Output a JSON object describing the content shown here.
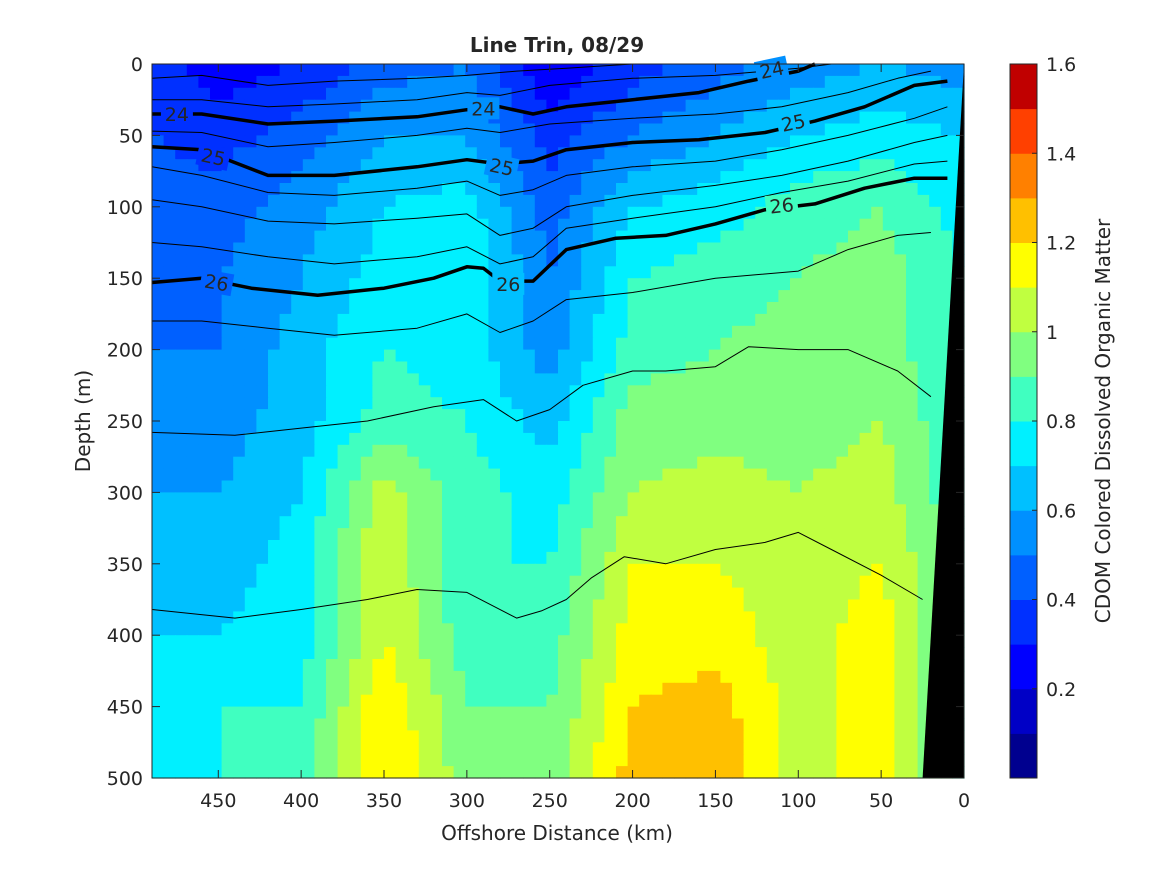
{
  "chart_data": {
    "type": "heatmap",
    "title": "Line Trin, 08/29",
    "xlabel": "Offshore Distance (km)",
    "ylabel": "Depth (m)",
    "colorbar_label": "CDOM Colored Dissolved Organic Matter",
    "xlim": [
      490,
      0
    ],
    "ylim": [
      0,
      500
    ],
    "x_reversed": true,
    "y_reversed": true,
    "x_ticks": [
      450,
      400,
      350,
      300,
      250,
      200,
      150,
      100,
      50,
      0
    ],
    "y_ticks": [
      0,
      50,
      100,
      150,
      200,
      250,
      300,
      350,
      400,
      450,
      500
    ],
    "colorbar_range": [
      0,
      1.6
    ],
    "colorbar_ticks": [
      0.2,
      0.4,
      0.6,
      0.8,
      1,
      1.2,
      1.4,
      1.6
    ],
    "colorbar_levels": 16,
    "colorbar_colors": [
      "#00008F",
      "#0000C6",
      "#0000FF",
      "#0030FF",
      "#0060FF",
      "#0090FF",
      "#00C0FF",
      "#00F0FF",
      "#40FFC0",
      "#80FF80",
      "#C0FF40",
      "#FFFF00",
      "#FFC000",
      "#FF8000",
      "#FF4000",
      "#C00000"
    ],
    "heatmap": {
      "x": [
        490,
        450,
        400,
        350,
        300,
        250,
        200,
        150,
        100,
        50,
        0
      ],
      "y": [
        0,
        50,
        100,
        150,
        200,
        250,
        300,
        350,
        400,
        450,
        500
      ],
      "z": [
        [
          0.35,
          0.25,
          0.3,
          0.45,
          0.5,
          0.2,
          0.35,
          0.45,
          0.55,
          0.6,
          0.55
        ],
        [
          0.4,
          0.35,
          0.45,
          0.6,
          0.6,
          0.35,
          0.5,
          0.6,
          0.7,
          0.75,
          0.7
        ],
        [
          0.45,
          0.45,
          0.55,
          0.7,
          0.75,
          0.45,
          0.7,
          0.75,
          0.85,
          0.9,
          0.75
        ],
        [
          0.45,
          0.5,
          0.6,
          0.75,
          0.8,
          0.5,
          0.8,
          0.85,
          0.9,
          0.95,
          0.8
        ],
        [
          0.5,
          0.5,
          0.65,
          0.8,
          0.75,
          0.55,
          0.85,
          0.9,
          0.95,
          0.95,
          0.8
        ],
        [
          0.55,
          0.55,
          0.65,
          0.85,
          0.8,
          0.65,
          0.95,
          0.95,
          0.95,
          1.0,
          0.8
        ],
        [
          0.6,
          0.6,
          0.7,
          1.05,
          0.85,
          0.75,
          1.0,
          1.05,
          1.0,
          1.05,
          0.8
        ],
        [
          0.6,
          0.65,
          0.75,
          1.1,
          0.8,
          0.8,
          1.1,
          1.1,
          1.05,
          1.1,
          0.85
        ],
        [
          0.7,
          0.7,
          0.75,
          1.1,
          0.85,
          0.85,
          1.15,
          1.15,
          1.05,
          1.15,
          0.85
        ],
        [
          0.75,
          0.8,
          0.8,
          1.2,
          0.9,
          0.9,
          1.2,
          1.25,
          1.05,
          1.15,
          0.85
        ],
        [
          0.8,
          0.8,
          0.85,
          1.2,
          0.95,
          0.95,
          1.25,
          1.3,
          1.05,
          1.15,
          0.85
        ]
      ]
    },
    "contours": [
      {
        "level": "24",
        "bold": true,
        "points": [
          [
            490,
            35
          ],
          [
            460,
            35
          ],
          [
            420,
            42
          ],
          [
            380,
            40
          ],
          [
            330,
            37
          ],
          [
            300,
            32
          ],
          [
            280,
            30
          ],
          [
            260,
            35
          ],
          [
            240,
            30
          ],
          [
            200,
            25
          ],
          [
            160,
            20
          ],
          [
            130,
            12
          ],
          [
            100,
            5
          ],
          [
            90,
            0
          ]
        ]
      },
      {
        "level": "25",
        "bold": true,
        "points": [
          [
            490,
            58
          ],
          [
            460,
            60
          ],
          [
            420,
            78
          ],
          [
            380,
            78
          ],
          [
            330,
            72
          ],
          [
            300,
            67
          ],
          [
            280,
            70
          ],
          [
            260,
            68
          ],
          [
            240,
            60
          ],
          [
            200,
            55
          ],
          [
            160,
            53
          ],
          [
            120,
            48
          ],
          [
            90,
            40
          ],
          [
            60,
            30
          ],
          [
            30,
            15
          ],
          [
            10,
            12
          ]
        ]
      },
      {
        "level": "26",
        "bold": true,
        "points": [
          [
            490,
            153
          ],
          [
            460,
            150
          ],
          [
            430,
            157
          ],
          [
            390,
            162
          ],
          [
            350,
            157
          ],
          [
            320,
            150
          ],
          [
            300,
            142
          ],
          [
            290,
            143
          ],
          [
            280,
            152
          ],
          [
            260,
            152
          ],
          [
            240,
            130
          ],
          [
            210,
            122
          ],
          [
            180,
            120
          ],
          [
            150,
            112
          ],
          [
            120,
            102
          ],
          [
            90,
            98
          ],
          [
            60,
            87
          ],
          [
            30,
            80
          ],
          [
            10,
            80
          ]
        ]
      },
      {
        "level": "",
        "bold": false,
        "points": [
          [
            490,
            10
          ],
          [
            460,
            8
          ],
          [
            420,
            15
          ],
          [
            380,
            12
          ],
          [
            330,
            10
          ],
          [
            300,
            8
          ],
          [
            270,
            5
          ],
          [
            240,
            3
          ],
          [
            200,
            0
          ]
        ]
      },
      {
        "level": "",
        "bold": false,
        "points": [
          [
            490,
            25
          ],
          [
            460,
            25
          ],
          [
            420,
            30
          ],
          [
            380,
            28
          ],
          [
            330,
            25
          ],
          [
            300,
            20
          ],
          [
            280,
            22
          ],
          [
            250,
            15
          ],
          [
            200,
            10
          ],
          [
            150,
            8
          ],
          [
            100,
            3
          ],
          [
            80,
            0
          ]
        ]
      },
      {
        "level": "",
        "bold": false,
        "points": [
          [
            490,
            47
          ],
          [
            460,
            48
          ],
          [
            420,
            58
          ],
          [
            380,
            55
          ],
          [
            330,
            50
          ],
          [
            300,
            45
          ],
          [
            280,
            48
          ],
          [
            250,
            42
          ],
          [
            200,
            38
          ],
          [
            150,
            35
          ],
          [
            110,
            30
          ],
          [
            70,
            20
          ],
          [
            40,
            10
          ],
          [
            20,
            5
          ]
        ]
      },
      {
        "level": "",
        "bold": false,
        "points": [
          [
            490,
            72
          ],
          [
            460,
            78
          ],
          [
            420,
            90
          ],
          [
            380,
            92
          ],
          [
            330,
            87
          ],
          [
            300,
            82
          ],
          [
            280,
            92
          ],
          [
            260,
            88
          ],
          [
            240,
            78
          ],
          [
            200,
            72
          ],
          [
            150,
            68
          ],
          [
            110,
            60
          ],
          [
            70,
            50
          ],
          [
            30,
            38
          ],
          [
            10,
            30
          ]
        ]
      },
      {
        "level": "",
        "bold": false,
        "points": [
          [
            490,
            95
          ],
          [
            460,
            100
          ],
          [
            420,
            110
          ],
          [
            380,
            112
          ],
          [
            330,
            108
          ],
          [
            300,
            105
          ],
          [
            280,
            120
          ],
          [
            260,
            115
          ],
          [
            240,
            100
          ],
          [
            200,
            92
          ],
          [
            150,
            85
          ],
          [
            110,
            78
          ],
          [
            70,
            68
          ],
          [
            30,
            55
          ],
          [
            10,
            50
          ]
        ]
      },
      {
        "level": "",
        "bold": false,
        "points": [
          [
            490,
            125
          ],
          [
            460,
            128
          ],
          [
            420,
            135
          ],
          [
            380,
            140
          ],
          [
            330,
            135
          ],
          [
            300,
            128
          ],
          [
            280,
            140
          ],
          [
            260,
            135
          ],
          [
            240,
            115
          ],
          [
            200,
            108
          ],
          [
            150,
            100
          ],
          [
            110,
            90
          ],
          [
            70,
            82
          ],
          [
            30,
            70
          ],
          [
            10,
            68
          ]
        ]
      },
      {
        "level": "",
        "bold": false,
        "points": [
          [
            490,
            180
          ],
          [
            460,
            180
          ],
          [
            420,
            185
          ],
          [
            380,
            190
          ],
          [
            330,
            185
          ],
          [
            300,
            175
          ],
          [
            280,
            188
          ],
          [
            260,
            180
          ],
          [
            240,
            165
          ],
          [
            200,
            160
          ],
          [
            150,
            150
          ],
          [
            100,
            145
          ],
          [
            70,
            130
          ],
          [
            40,
            120
          ],
          [
            20,
            118
          ]
        ]
      },
      {
        "level": "",
        "bold": false,
        "points": [
          [
            490,
            258
          ],
          [
            440,
            260
          ],
          [
            400,
            255
          ],
          [
            360,
            250
          ],
          [
            320,
            240
          ],
          [
            290,
            235
          ],
          [
            270,
            250
          ],
          [
            250,
            242
          ],
          [
            230,
            225
          ],
          [
            200,
            215
          ],
          [
            180,
            215
          ],
          [
            150,
            212
          ],
          [
            130,
            198
          ],
          [
            100,
            200
          ],
          [
            70,
            200
          ],
          [
            40,
            215
          ],
          [
            20,
            233
          ]
        ]
      },
      {
        "level": "",
        "bold": false,
        "points": [
          [
            490,
            382
          ],
          [
            440,
            388
          ],
          [
            400,
            382
          ],
          [
            360,
            375
          ],
          [
            330,
            368
          ],
          [
            300,
            370
          ],
          [
            270,
            388
          ],
          [
            255,
            383
          ],
          [
            240,
            375
          ],
          [
            225,
            360
          ],
          [
            205,
            345
          ],
          [
            180,
            350
          ],
          [
            150,
            340
          ],
          [
            120,
            335
          ],
          [
            100,
            328
          ],
          [
            80,
            340
          ],
          [
            50,
            358
          ],
          [
            25,
            375
          ]
        ]
      }
    ],
    "labels": [
      {
        "text": "24",
        "x": 475,
        "y": 35,
        "angle": 0
      },
      {
        "text": "24",
        "x": 290,
        "y": 31,
        "angle": 0
      },
      {
        "text": "24",
        "x": 116,
        "y": 4,
        "angle": -12
      },
      {
        "text": "25",
        "x": 453,
        "y": 65,
        "angle": 12
      },
      {
        "text": "25",
        "x": 279,
        "y": 72,
        "angle": 12
      },
      {
        "text": "25",
        "x": 103,
        "y": 41,
        "angle": -12
      },
      {
        "text": "26",
        "x": 451,
        "y": 153,
        "angle": 10
      },
      {
        "text": "26",
        "x": 275,
        "y": 154,
        "angle": 0
      },
      {
        "text": "26",
        "x": 110,
        "y": 99,
        "angle": -6
      }
    ],
    "land_mask": [
      [
        0,
        0
      ],
      [
        0,
        500
      ],
      [
        25,
        500
      ],
      [
        0,
        0
      ]
    ],
    "grid": false,
    "legend": "none",
    "colors": {
      "land": "#000000",
      "contour": "#000000",
      "axis": "#262626"
    }
  }
}
